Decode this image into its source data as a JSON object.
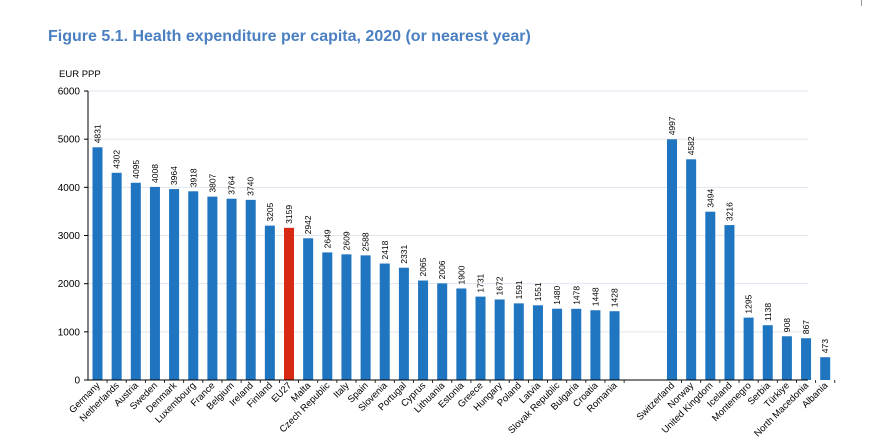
{
  "chart_data": {
    "type": "bar",
    "title": "Figure 5.1. Health expenditure per capita, 2020 (or nearest year)",
    "ylabel": "EUR PPP",
    "xlabel": "",
    "ylim": [
      0,
      6000
    ],
    "yticks": [
      0,
      1000,
      2000,
      3000,
      4000,
      5000,
      6000
    ],
    "grid": true,
    "highlight_category": "EU27",
    "colors": {
      "bar": "#1f75c0",
      "highlight": "#d62a14",
      "grid": "#dfe6ee"
    },
    "groups": [
      {
        "categories": [
          "Germany",
          "Netherlands",
          "Austria",
          "Sweden",
          "Denmark",
          "Luxembourg",
          "France",
          "Belgium",
          "Ireland",
          "Finland",
          "EU27",
          "Malta",
          "Czech Republic",
          "Italy",
          "Spain",
          "Slovenia",
          "Portugal",
          "Cyprus",
          "Lithuania",
          "Estonia",
          "Greece",
          "Hungary",
          "Poland",
          "Latvia",
          "Slovak Republic",
          "Bulgaria",
          "Croatia",
          "Romania"
        ],
        "values": [
          4831,
          4302,
          4095,
          4008,
          3964,
          3918,
          3807,
          3764,
          3740,
          3205,
          3159,
          2942,
          2649,
          2609,
          2588,
          2418,
          2331,
          2065,
          2006,
          1900,
          1731,
          1672,
          1591,
          1551,
          1480,
          1478,
          1448,
          1428
        ]
      },
      {
        "categories": [
          "Switzerland",
          "Norway",
          "United Kingdom",
          "Iceland",
          "Montenegro",
          "Serbia",
          "Türkiye",
          "North Macedonia",
          "Albania"
        ],
        "values": [
          4997,
          4582,
          3494,
          3216,
          1295,
          1138,
          908,
          867,
          473
        ]
      }
    ]
  }
}
